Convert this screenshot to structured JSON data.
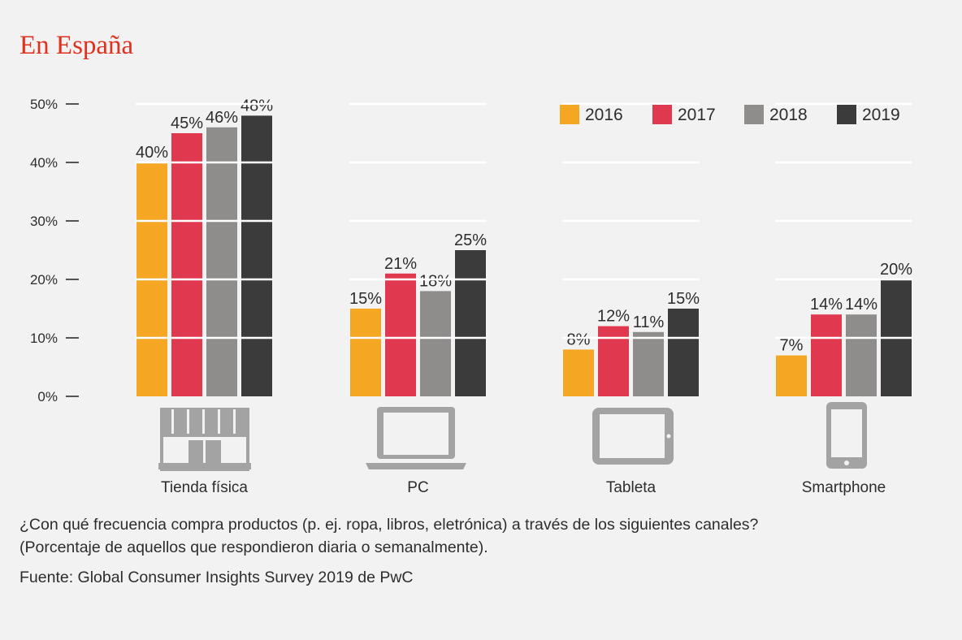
{
  "title": "En España",
  "chart_data": {
    "type": "bar",
    "categories": [
      "Tienda física",
      "PC",
      "Tableta",
      "Smartphone"
    ],
    "series": [
      {
        "name": "2016",
        "values": [
          40,
          15,
          8,
          7
        ],
        "labels": [
          "40%",
          "15%",
          "8%",
          "7%"
        ]
      },
      {
        "name": "2017",
        "values": [
          45,
          21,
          12,
          14
        ],
        "labels": [
          "45%",
          "21%",
          "12%",
          "14%"
        ]
      },
      {
        "name": "2018",
        "values": [
          46,
          18,
          11,
          14
        ],
        "labels": [
          "46%",
          "18%",
          "11%",
          "14%"
        ]
      },
      {
        "name": "2019",
        "values": [
          48,
          25,
          15,
          20
        ],
        "labels": [
          "48%",
          "25%",
          "15%",
          "20%"
        ]
      }
    ],
    "colors": [
      "#f5a623",
      "#e0384f",
      "#8f8c8c",
      "#3c3b3b"
    ],
    "y_ticks": [
      "0%",
      "10%",
      "20%",
      "30%",
      "40%",
      "50%"
    ],
    "ylim": [
      0,
      50
    ],
    "legend_position": "top-right",
    "category_icons": [
      "store-icon",
      "laptop-icon",
      "tablet-icon",
      "smartphone-icon"
    ]
  },
  "note": {
    "line1": "¿Con qué frecuencia compra productos (p. ej. ropa, libros, eletrónica) a través de los siguientes canales?",
    "line2": "(Porcentaje de aquellos que respondieron diaria o semanalmente)."
  },
  "source": "Fuente: Global Consumer Insights Survey 2019 de PwC"
}
